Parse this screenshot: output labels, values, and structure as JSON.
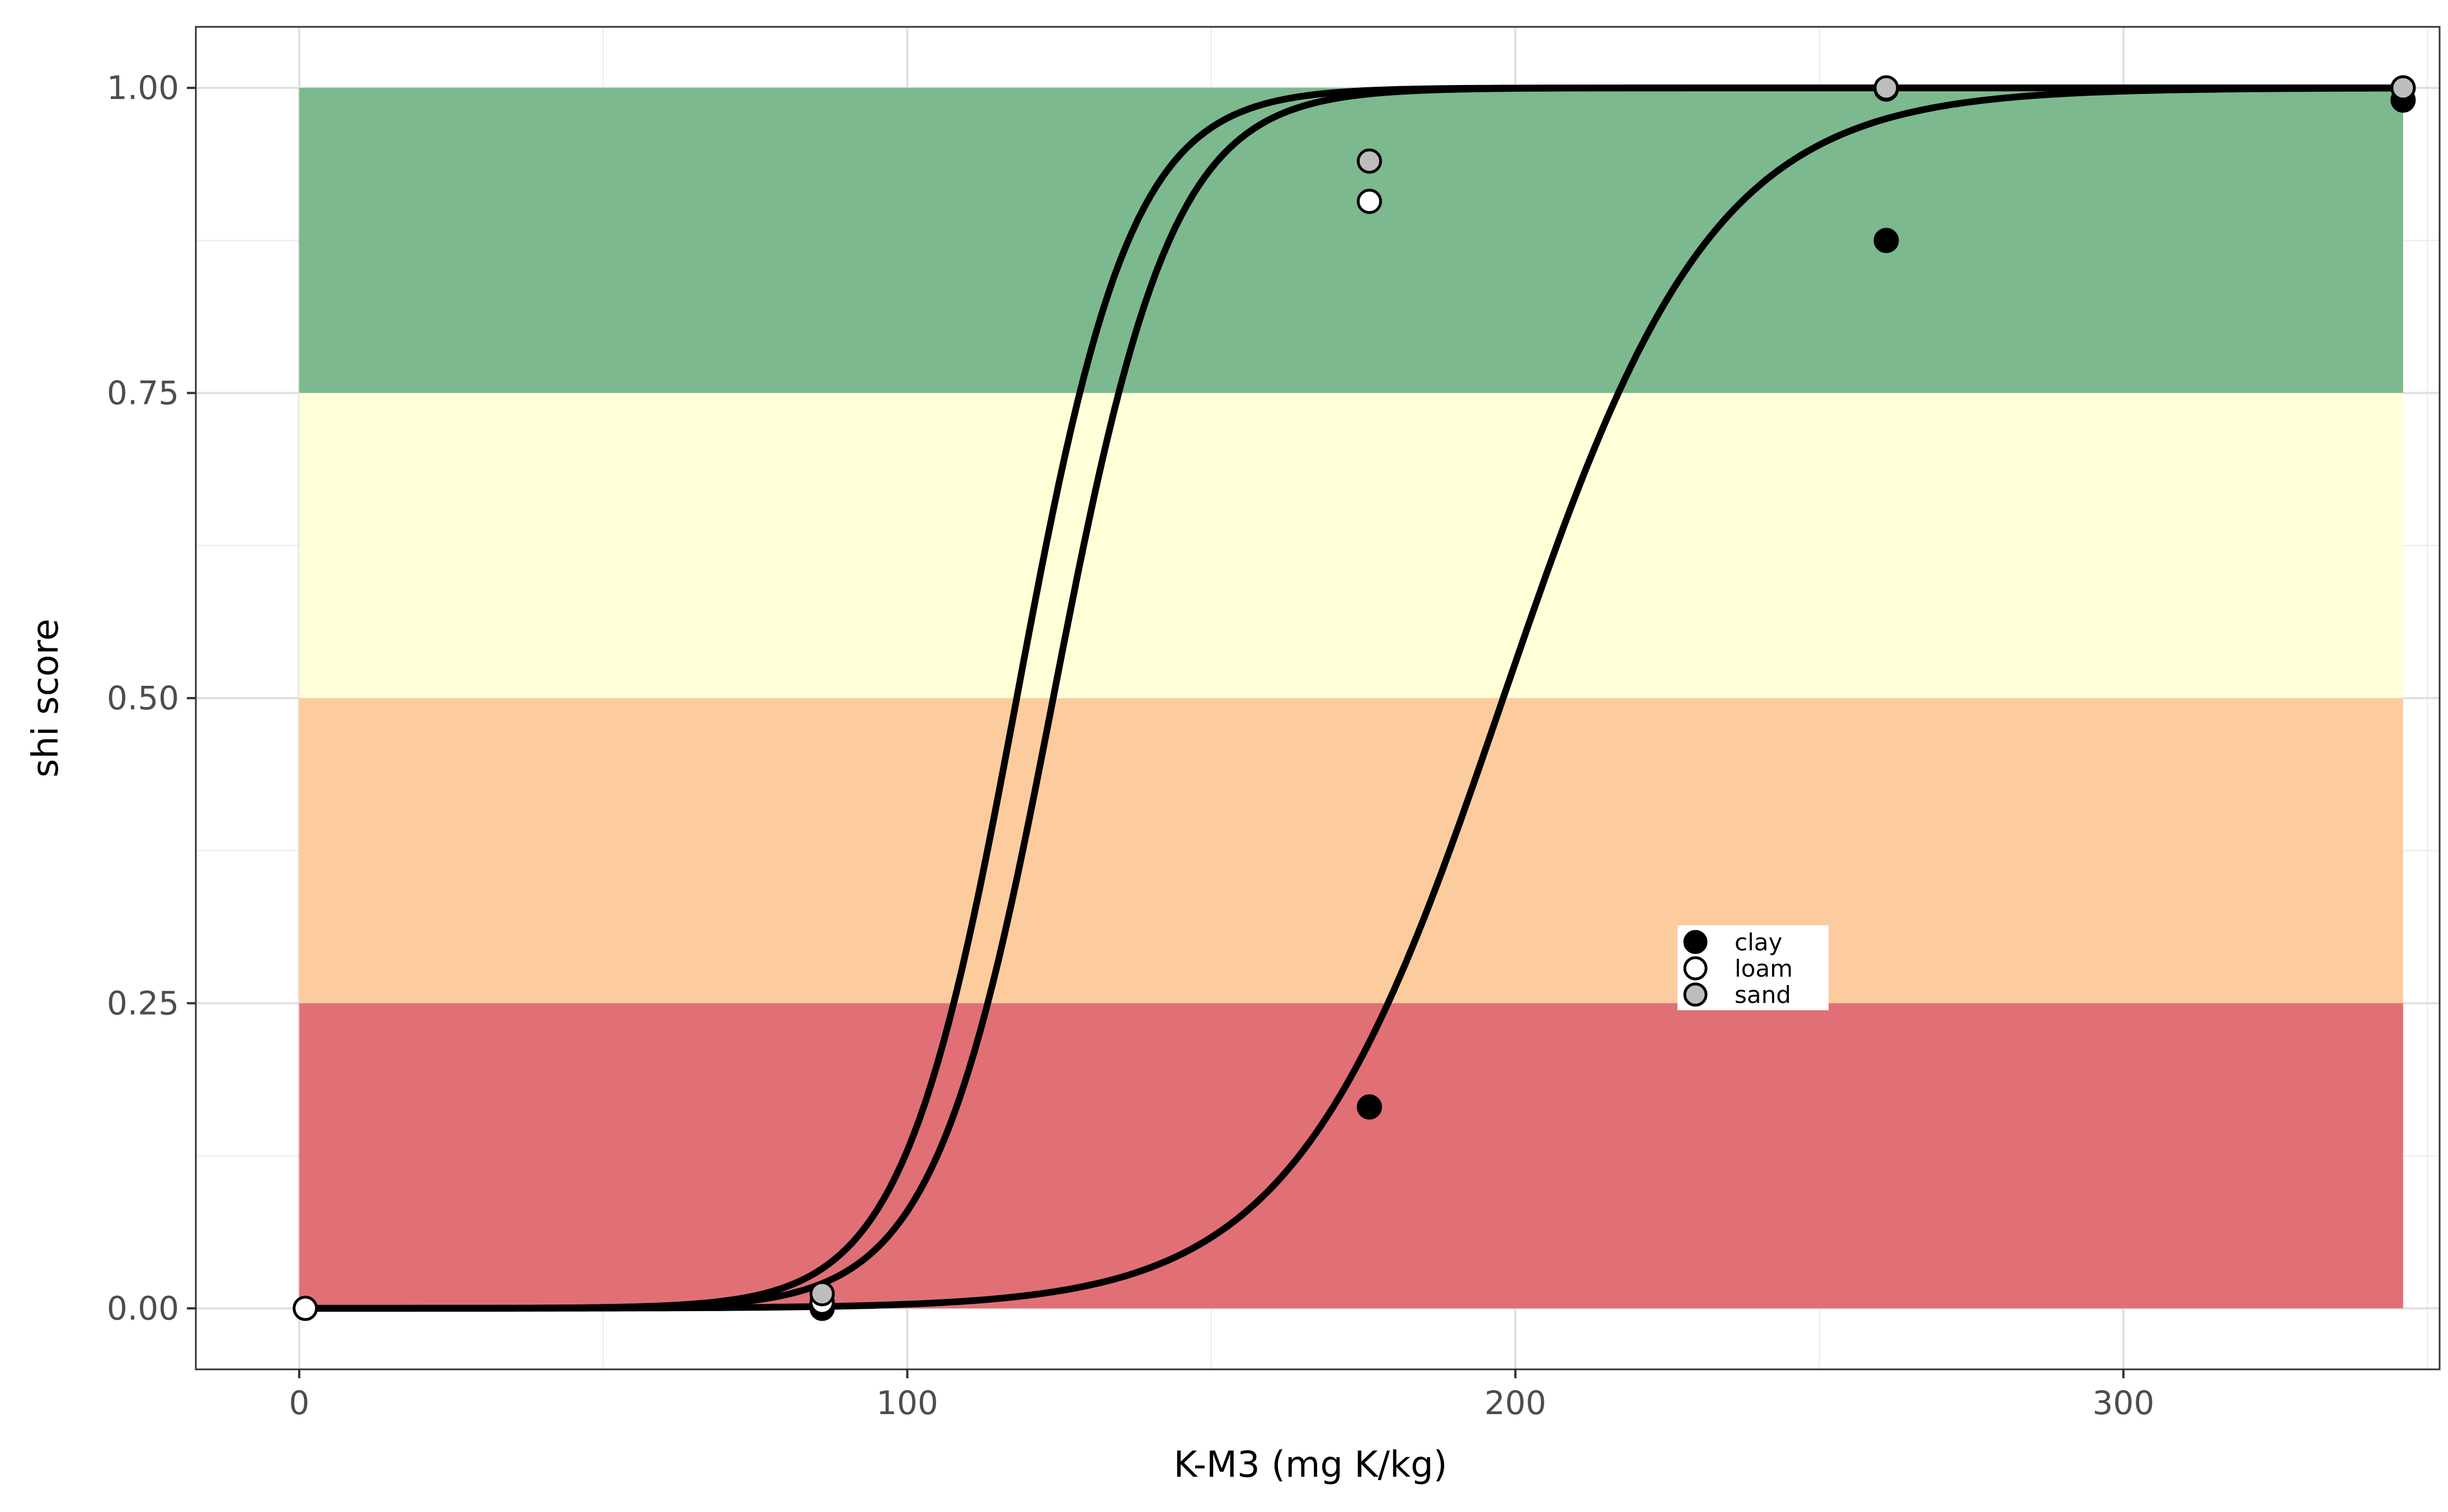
{
  "chart_data": {
    "type": "line",
    "title": "",
    "xlabel": "K-M3 (mg K/kg)",
    "ylabel": "shi score",
    "xlim": [
      -17,
      352
    ],
    "ylim": [
      -0.05,
      1.05
    ],
    "grid": true,
    "x_ticks": [
      0,
      100,
      200,
      300
    ],
    "x_tick_labels": [
      "0",
      "100",
      "200",
      "300"
    ],
    "y_ticks": [
      0,
      0.25,
      0.5,
      0.75,
      1
    ],
    "y_tick_labels": [
      "0.00",
      "0.25",
      "0.50",
      "0.75",
      "1.00"
    ],
    "bands": [
      {
        "ymin": 0.0,
        "ymax": 0.25,
        "xmin": 0,
        "xmax": 346,
        "color": "#e07076"
      },
      {
        "ymin": 0.25,
        "ymax": 0.5,
        "xmin": 0,
        "xmax": 346,
        "color": "#fccc9e"
      },
      {
        "ymin": 0.5,
        "ymax": 0.75,
        "xmin": 0,
        "xmax": 346,
        "color": "#ffffd8"
      },
      {
        "ymin": 0.75,
        "ymax": 1.0,
        "xmin": 0,
        "xmax": 346,
        "color": "#7cb98e"
      }
    ],
    "series": [
      {
        "name": "clay",
        "marker_fill": "#000000",
        "curve": {
          "midpoint": 198,
          "rate": 0.058,
          "xmax": 346
        },
        "points": [
          [
            86,
            0.0
          ],
          [
            176,
            0.165
          ],
          [
            261,
            0.875
          ],
          [
            346,
            0.99
          ]
        ]
      },
      {
        "name": "loam",
        "marker_fill": "#ffffff",
        "curve": {
          "midpoint": 124,
          "rate": 0.102,
          "xmax": 346
        },
        "points": [
          [
            1,
            0.0
          ],
          [
            86,
            0.005
          ],
          [
            176,
            0.907
          ],
          [
            261,
            0.999
          ],
          [
            346,
            1.0
          ]
        ]
      },
      {
        "name": "sand",
        "marker_fill": "#bdbdbd",
        "curve": {
          "midpoint": 118,
          "rate": 0.106,
          "xmax": 346
        },
        "points": [
          [
            86,
            0.012
          ],
          [
            176,
            0.94
          ],
          [
            261,
            1.0
          ],
          [
            346,
            1.0
          ]
        ]
      }
    ],
    "legend": {
      "placement": "inside-center-right",
      "entries": [
        {
          "label": "clay",
          "fill": "#000000"
        },
        {
          "label": "loam",
          "fill": "#ffffff"
        },
        {
          "label": "sand",
          "fill": "#bdbdbd"
        }
      ]
    }
  }
}
